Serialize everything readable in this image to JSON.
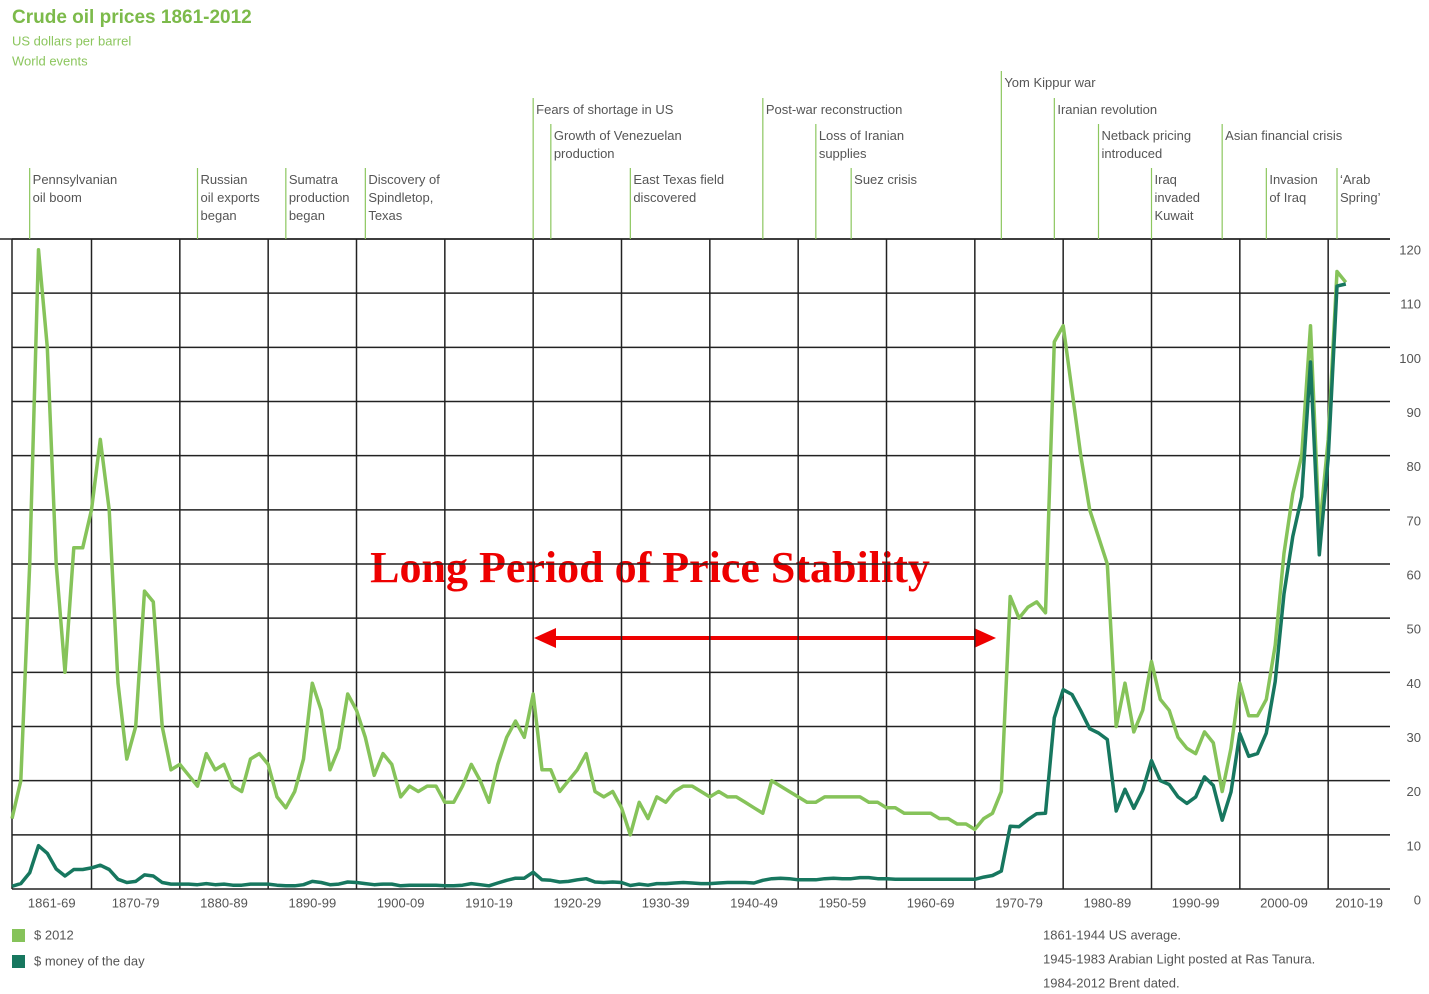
{
  "chart_data": {
    "type": "line",
    "title": "Crude oil prices 1861-2012",
    "subtitle": "US dollars per barrel",
    "events_title": "World events",
    "annotation": "Long Period of Price Stability",
    "x": [
      1861,
      1862,
      1863,
      1864,
      1865,
      1866,
      1867,
      1868,
      1869,
      1870,
      1871,
      1872,
      1873,
      1874,
      1875,
      1876,
      1877,
      1878,
      1879,
      1880,
      1881,
      1882,
      1883,
      1884,
      1885,
      1886,
      1887,
      1888,
      1889,
      1890,
      1891,
      1892,
      1893,
      1894,
      1895,
      1896,
      1897,
      1898,
      1899,
      1900,
      1901,
      1902,
      1903,
      1904,
      1905,
      1906,
      1907,
      1908,
      1909,
      1910,
      1911,
      1912,
      1913,
      1914,
      1915,
      1916,
      1917,
      1918,
      1919,
      1920,
      1921,
      1922,
      1923,
      1924,
      1925,
      1926,
      1927,
      1928,
      1929,
      1930,
      1931,
      1932,
      1933,
      1934,
      1935,
      1936,
      1937,
      1938,
      1939,
      1940,
      1941,
      1942,
      1943,
      1944,
      1945,
      1946,
      1947,
      1948,
      1949,
      1950,
      1951,
      1952,
      1953,
      1954,
      1955,
      1956,
      1957,
      1958,
      1959,
      1960,
      1961,
      1962,
      1963,
      1964,
      1965,
      1966,
      1967,
      1968,
      1969,
      1970,
      1971,
      1972,
      1973,
      1974,
      1975,
      1976,
      1977,
      1978,
      1979,
      1980,
      1981,
      1982,
      1983,
      1984,
      1985,
      1986,
      1987,
      1988,
      1989,
      1990,
      1991,
      1992,
      1993,
      1994,
      1995,
      1996,
      1997,
      1998,
      1999,
      2000,
      2001,
      2002,
      2003,
      2004,
      2005,
      2006,
      2007,
      2008,
      2009,
      2010,
      2011,
      2012
    ],
    "series": [
      {
        "name": "$ 2012",
        "color": "#86c35a",
        "values": [
          13,
          20,
          60,
          118,
          100,
          60,
          40,
          63,
          63,
          70,
          83,
          70,
          38,
          24,
          30,
          55,
          53,
          30,
          22,
          23,
          21,
          19,
          25,
          22,
          23,
          19,
          18,
          24,
          25,
          23,
          17,
          15,
          18,
          24,
          38,
          33,
          22,
          26,
          36,
          33,
          28,
          21,
          25,
          23,
          17,
          19,
          18,
          19,
          19,
          16,
          16,
          19,
          23,
          20,
          16,
          23,
          28,
          31,
          28,
          36,
          22,
          22,
          18,
          20,
          22,
          25,
          18,
          17,
          18,
          15,
          10,
          16,
          13,
          17,
          16,
          18,
          19,
          19,
          18,
          17,
          18,
          17,
          17,
          16,
          15,
          14,
          20,
          19,
          18,
          17,
          16,
          16,
          17,
          17,
          17,
          17,
          17,
          16,
          16,
          15,
          15,
          14,
          14,
          14,
          14,
          13,
          13,
          12,
          12,
          11,
          13,
          14,
          18,
          54,
          50,
          52,
          53,
          51,
          101,
          104,
          92,
          80,
          70,
          65,
          60,
          30,
          38,
          29,
          33,
          42,
          35,
          33,
          28,
          26,
          25,
          29,
          27,
          18,
          26,
          38,
          32,
          32,
          35,
          45,
          62,
          73,
          80,
          104,
          66,
          83,
          114,
          112
        ]
      },
      {
        "name": "$ money of the day",
        "color": "#17775f",
        "values": [
          0.5,
          1,
          3,
          8,
          6.6,
          3.7,
          2.4,
          3.6,
          3.6,
          3.9,
          4.4,
          3.6,
          1.8,
          1.2,
          1.4,
          2.6,
          2.4,
          1.2,
          0.9,
          0.9,
          0.9,
          0.8,
          1.0,
          0.8,
          0.9,
          0.7,
          0.7,
          0.9,
          0.9,
          0.9,
          0.7,
          0.6,
          0.6,
          0.8,
          1.4,
          1.2,
          0.8,
          0.9,
          1.3,
          1.2,
          1.0,
          0.8,
          0.9,
          0.9,
          0.6,
          0.7,
          0.7,
          0.7,
          0.7,
          0.6,
          0.6,
          0.7,
          1.0,
          0.8,
          0.6,
          1.1,
          1.6,
          2.0,
          2.0,
          3.1,
          1.7,
          1.6,
          1.3,
          1.4,
          1.7,
          1.9,
          1.3,
          1.2,
          1.3,
          1.2,
          0.65,
          0.9,
          0.7,
          1.0,
          1.0,
          1.1,
          1.2,
          1.1,
          1.0,
          1.0,
          1.1,
          1.2,
          1.2,
          1.2,
          1.1,
          1.6,
          1.9,
          2.0,
          1.9,
          1.7,
          1.7,
          1.7,
          1.9,
          2.0,
          1.9,
          1.9,
          2.1,
          2.1,
          1.9,
          1.9,
          1.8,
          1.8,
          1.8,
          1.8,
          1.8,
          1.8,
          1.8,
          1.8,
          1.8,
          1.8,
          2.2,
          2.5,
          3.3,
          11.6,
          11.5,
          12.8,
          13.9,
          14.0,
          31.6,
          36.8,
          35.9,
          32.9,
          29.6,
          28.8,
          27.6,
          14.4,
          18.4,
          14.9,
          18.2,
          23.7,
          20.0,
          19.3,
          17.0,
          15.8,
          17.0,
          20.7,
          19.1,
          12.7,
          17.9,
          28.7,
          24.5,
          25.0,
          28.8,
          38.3,
          54.5,
          65.1,
          72.4,
          97.3,
          61.7,
          79.5,
          111.3,
          111.7
        ]
      }
    ],
    "xlim": [
      1861,
      2017
    ],
    "xticks": [
      {
        "value": 1861,
        "label": "1861-69"
      },
      {
        "value": 1870,
        "label": "1870-79"
      },
      {
        "value": 1880,
        "label": "1880-89"
      },
      {
        "value": 1890,
        "label": "1890-99"
      },
      {
        "value": 1900,
        "label": "1900-09"
      },
      {
        "value": 1910,
        "label": "1910-19"
      },
      {
        "value": 1920,
        "label": "1920-29"
      },
      {
        "value": 1930,
        "label": "1930-39"
      },
      {
        "value": 1940,
        "label": "1940-49"
      },
      {
        "value": 1950,
        "label": "1950-59"
      },
      {
        "value": 1960,
        "label": "1960-69"
      },
      {
        "value": 1970,
        "label": "1970-79"
      },
      {
        "value": 1980,
        "label": "1980-89"
      },
      {
        "value": 1990,
        "label": "1990-99"
      },
      {
        "value": 2000,
        "label": "2000-09"
      },
      {
        "value": 2010,
        "label": "2010-19"
      }
    ],
    "ylim": [
      0,
      120
    ],
    "yticks": [
      0,
      10,
      20,
      30,
      40,
      50,
      60,
      70,
      80,
      90,
      100,
      110,
      120
    ],
    "grid": true,
    "legend": "bottom-left",
    "events": [
      {
        "x": 1863,
        "lines": [
          "Pennsylvanian",
          "oil boom"
        ]
      },
      {
        "x": 1882,
        "lines": [
          "Russian",
          "oil exports",
          "began"
        ]
      },
      {
        "x": 1892,
        "lines": [
          "Sumatra",
          "production",
          "began"
        ]
      },
      {
        "x": 1901,
        "lines": [
          "Discovery of",
          "Spindletop,",
          "Texas"
        ]
      },
      {
        "x": 1920,
        "lines": [
          "Fears of shortage in US"
        ]
      },
      {
        "x": 1922,
        "lines": [
          "Growth of Venezuelan",
          "production"
        ]
      },
      {
        "x": 1931,
        "lines": [
          "East Texas field",
          "discovered"
        ]
      },
      {
        "x": 1946,
        "lines": [
          "Post-war reconstruction"
        ]
      },
      {
        "x": 1952,
        "lines": [
          "Loss of Iranian",
          "supplies"
        ]
      },
      {
        "x": 1956,
        "lines": [
          "Suez crisis"
        ]
      },
      {
        "x": 1973,
        "lines": [
          "Yom Kippur war"
        ]
      },
      {
        "x": 1979,
        "lines": [
          "Iranian revolution"
        ]
      },
      {
        "x": 1984,
        "lines": [
          "Netback pricing",
          "introduced"
        ]
      },
      {
        "x": 1990,
        "lines": [
          "Iraq",
          "invaded",
          "Kuwait"
        ]
      },
      {
        "x": 1998,
        "lines": [
          "Asian financial crisis"
        ]
      },
      {
        "x": 2003,
        "lines": [
          "Invasion",
          "of Iraq"
        ]
      },
      {
        "x": 2011,
        "lines": [
          "‘Arab",
          "Spring’"
        ]
      }
    ],
    "notes": [
      "1861-1944 US average.",
      "1945-1983 Arabian Light posted at Ras Tanura.",
      "1984-2012 Brent dated."
    ]
  }
}
